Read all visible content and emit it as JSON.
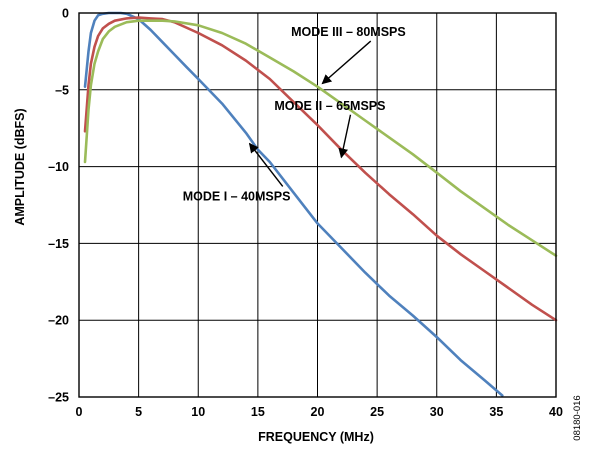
{
  "chart_data": {
    "type": "line",
    "xlabel": "FREQUENCY (MHz)",
    "ylabel": "AMPLITUDE (dBFS)",
    "xlim": [
      0,
      40
    ],
    "ylim": [
      -25,
      0
    ],
    "xticks": [
      0,
      5,
      10,
      15,
      20,
      25,
      30,
      35,
      40
    ],
    "yticks": [
      0,
      -5,
      -10,
      -15,
      -20,
      -25
    ],
    "xtick_labels": [
      "0",
      "5",
      "10",
      "15",
      "20",
      "25",
      "30",
      "35",
      "40"
    ],
    "ytick_labels": [
      "0",
      "–5",
      "–10",
      "–15",
      "–20",
      "–25"
    ],
    "grid": true,
    "series": [
      {
        "name": "MODE I – 40MSPS",
        "color": "#4f81bd",
        "x": [
          0.5,
          0.8,
          1.0,
          1.3,
          1.6,
          2.0,
          2.5,
          3.0,
          3.5,
          4.0,
          5.0,
          6.0,
          7.0,
          8.0,
          9.0,
          10.0,
          12.0,
          14.0,
          15.0,
          16.0,
          18.0,
          20.0,
          22.0,
          24.0,
          26.0,
          28.0,
          30.0,
          32.0,
          34.0,
          35.5
        ],
        "y": [
          -4.8,
          -2.5,
          -1.3,
          -0.5,
          -0.15,
          -0.05,
          0.0,
          0.0,
          0.0,
          -0.05,
          -0.4,
          -1.1,
          -1.9,
          -2.7,
          -3.5,
          -4.3,
          -5.9,
          -7.8,
          -8.9,
          -9.7,
          -11.7,
          -13.7,
          -15.3,
          -16.9,
          -18.4,
          -19.7,
          -21.1,
          -22.6,
          -23.9,
          -24.9
        ]
      },
      {
        "name": "MODE II – 65MSPS",
        "color": "#c0504d",
        "x": [
          0.5,
          0.8,
          1.0,
          1.3,
          1.6,
          2.0,
          2.5,
          3.0,
          4.0,
          5.0,
          6.0,
          7.0,
          8.0,
          10.0,
          12.0,
          14.0,
          16.0,
          18.0,
          20.0,
          22.0,
          24.0,
          26.0,
          28.0,
          30.0,
          32.0,
          34.0,
          36.0,
          38.0,
          40.0
        ],
        "y": [
          -7.7,
          -4.7,
          -3.3,
          -2.2,
          -1.5,
          -1.0,
          -0.7,
          -0.5,
          -0.35,
          -0.3,
          -0.35,
          -0.4,
          -0.6,
          -1.3,
          -2.1,
          -3.1,
          -4.3,
          -5.8,
          -7.3,
          -8.9,
          -10.4,
          -11.8,
          -13.1,
          -14.5,
          -15.7,
          -16.8,
          -17.9,
          -19.0,
          -20.0
        ]
      },
      {
        "name": "MODE III – 80MSPS",
        "color": "#9bbb59",
        "x": [
          0.5,
          0.8,
          1.0,
          1.3,
          1.6,
          2.0,
          2.5,
          3.0,
          4.0,
          5.0,
          6.0,
          7.0,
          8.0,
          10.0,
          12.0,
          14.0,
          16.0,
          18.0,
          20.0,
          22.0,
          24.0,
          26.0,
          28.0,
          30.0,
          32.0,
          34.0,
          36.0,
          38.0,
          40.0
        ],
        "y": [
          -9.7,
          -6.3,
          -4.7,
          -3.3,
          -2.5,
          -1.7,
          -1.2,
          -0.9,
          -0.6,
          -0.5,
          -0.5,
          -0.5,
          -0.55,
          -0.8,
          -1.3,
          -2.0,
          -2.9,
          -3.8,
          -4.8,
          -5.9,
          -7.0,
          -8.1,
          -9.2,
          -10.4,
          -11.6,
          -12.7,
          -13.8,
          -14.8,
          -15.8
        ]
      }
    ],
    "annotations": [
      {
        "text": "MODE III – 80MSPS",
        "data_x": 20.4,
        "data_y": -4.6,
        "anchor": "end",
        "label_x": 27.4,
        "label_y": -1.5
      },
      {
        "text": "MODE II – 65MSPS",
        "data_x": 22.0,
        "data_y": -9.4,
        "anchor": "end",
        "label_x": 25.7,
        "label_y": -6.3
      },
      {
        "text": "MODE I – 40MSPS",
        "data_x": 14.3,
        "data_y": -8.5,
        "anchor": "start",
        "label_x": 8.7,
        "label_y": -12.2
      }
    ]
  },
  "figure_id": "08180-016"
}
